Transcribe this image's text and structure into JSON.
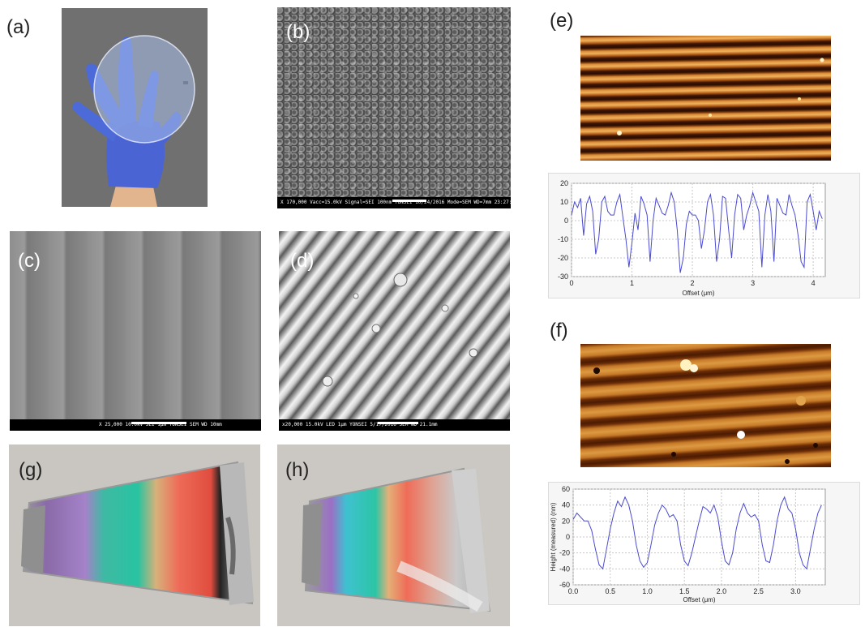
{
  "panels": {
    "a": {
      "label": "(a)"
    },
    "b": {
      "label": "(b)",
      "scalebar_text": "X 170,000  Vacc=15.0kV    Signal=SEI    100nm  YONSEI 10/24/2016   Mode=SEM   WD=7mm 23:27:01"
    },
    "c": {
      "label": "(c)",
      "scalebar_text": "X 25,000   10.0kV SEI          1μm  YONSEI   SEM   WD 10mm"
    },
    "d": {
      "label": "(d)",
      "scalebar_text": "x20,000   15.0kV LED     1μm  YONSEI 5/17/2016   SEM   WD 21.1mm"
    },
    "e": {
      "label": "(e)"
    },
    "f": {
      "label": "(f)"
    },
    "g": {
      "label": "(g)"
    },
    "h": {
      "label": "(h)"
    }
  },
  "colors": {
    "profile_line": "#4a4ad0",
    "glove": "#4f6fd8"
  },
  "chart_data": [
    {
      "type": "line",
      "panel": "e",
      "title": "",
      "xlabel": "Offset (μm)",
      "ylabel": "",
      "xlim": [
        0,
        4.2
      ],
      "ylim": [
        -30,
        20
      ],
      "xticks": [
        0,
        1,
        2,
        3,
        4
      ],
      "yticks": [
        20,
        10,
        0,
        -10,
        -20,
        -30
      ],
      "grid": true,
      "x": [
        0.0,
        0.05,
        0.1,
        0.15,
        0.2,
        0.25,
        0.3,
        0.35,
        0.4,
        0.45,
        0.5,
        0.55,
        0.6,
        0.65,
        0.7,
        0.75,
        0.8,
        0.85,
        0.9,
        0.95,
        1.0,
        1.05,
        1.1,
        1.15,
        1.2,
        1.25,
        1.3,
        1.35,
        1.4,
        1.45,
        1.5,
        1.55,
        1.6,
        1.65,
        1.7,
        1.75,
        1.8,
        1.85,
        1.9,
        1.95,
        2.0,
        2.05,
        2.1,
        2.15,
        2.2,
        2.25,
        2.3,
        2.35,
        2.4,
        2.45,
        2.5,
        2.55,
        2.6,
        2.65,
        2.7,
        2.75,
        2.8,
        2.85,
        2.9,
        2.95,
        3.0,
        3.05,
        3.1,
        3.15,
        3.2,
        3.25,
        3.3,
        3.35,
        3.4,
        3.45,
        3.5,
        3.55,
        3.6,
        3.65,
        3.7,
        3.75,
        3.8,
        3.85,
        3.9,
        3.95,
        4.0,
        4.05,
        4.1,
        4.15
      ],
      "y": [
        3,
        10,
        7,
        12,
        -8,
        9,
        13,
        5,
        -18,
        -10,
        10,
        13,
        5,
        3,
        3,
        10,
        14,
        2,
        -10,
        -25,
        -12,
        4,
        -5,
        13,
        9,
        3,
        -22,
        0,
        12,
        8,
        4,
        3,
        8,
        15,
        10,
        -5,
        -28,
        -20,
        -2,
        5,
        3,
        3,
        0,
        -15,
        -5,
        10,
        14,
        3,
        -22,
        -10,
        13,
        12,
        -5,
        -20,
        3,
        14,
        12,
        -5,
        3,
        8,
        15,
        10,
        5,
        -25,
        3,
        14,
        5,
        -22,
        12,
        8,
        4,
        3,
        14,
        8,
        3,
        -8,
        -22,
        -25,
        10,
        14,
        5,
        -5,
        5,
        1
      ]
    },
    {
      "type": "line",
      "panel": "f",
      "title": "",
      "xlabel": "Offset (μm)",
      "ylabel": "Height (measured) (nm)",
      "xlim": [
        0,
        3.4
      ],
      "ylim": [
        -60,
        60
      ],
      "xticks": [
        0.0,
        0.5,
        1.0,
        1.5,
        2.0,
        2.5,
        3.0
      ],
      "yticks": [
        60,
        40,
        20,
        0,
        -20,
        -40,
        -60
      ],
      "grid": true,
      "x": [
        0.0,
        0.05,
        0.1,
        0.15,
        0.2,
        0.25,
        0.3,
        0.35,
        0.4,
        0.45,
        0.5,
        0.55,
        0.6,
        0.65,
        0.7,
        0.75,
        0.8,
        0.85,
        0.9,
        0.95,
        1.0,
        1.05,
        1.1,
        1.15,
        1.2,
        1.25,
        1.3,
        1.35,
        1.4,
        1.45,
        1.5,
        1.55,
        1.6,
        1.65,
        1.7,
        1.75,
        1.8,
        1.85,
        1.9,
        1.95,
        2.0,
        2.05,
        2.1,
        2.15,
        2.2,
        2.25,
        2.3,
        2.35,
        2.4,
        2.45,
        2.5,
        2.55,
        2.6,
        2.65,
        2.7,
        2.75,
        2.8,
        2.85,
        2.9,
        2.95,
        3.0,
        3.05,
        3.1,
        3.15,
        3.2,
        3.25,
        3.3,
        3.35
      ],
      "y": [
        22,
        30,
        25,
        20,
        20,
        8,
        -15,
        -35,
        -40,
        -15,
        10,
        30,
        45,
        38,
        50,
        40,
        20,
        -10,
        -30,
        -38,
        -32,
        -10,
        15,
        30,
        40,
        35,
        25,
        28,
        20,
        -10,
        -30,
        -36,
        -20,
        0,
        20,
        38,
        35,
        30,
        40,
        25,
        -5,
        -30,
        -35,
        -20,
        10,
        30,
        42,
        30,
        25,
        28,
        20,
        -10,
        -30,
        -32,
        -10,
        20,
        40,
        50,
        35,
        30,
        10,
        -20,
        -35,
        -40,
        -15,
        10,
        30,
        40
      ]
    }
  ]
}
